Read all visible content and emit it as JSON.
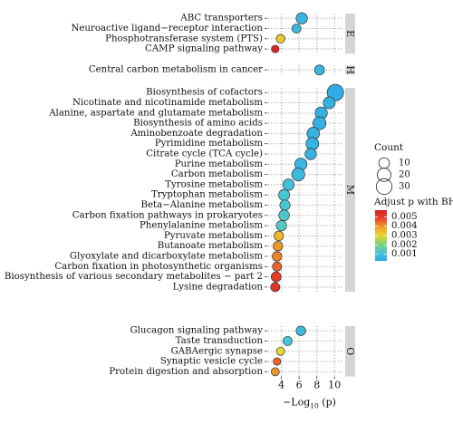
{
  "chart_data": {
    "type": "scatter",
    "subtype": "dot-plot (KEGG enrichment)",
    "title": "",
    "xlabel": {
      "main": "−Log",
      "sub": "10",
      "tail": " (p)"
    },
    "xlim": [
      2.5,
      11
    ],
    "x_ticks": [
      4,
      6,
      8,
      10
    ],
    "x_tick_labels": [
      "4",
      "6",
      "8",
      "10"
    ],
    "grid": "dotted",
    "legend_position": "right",
    "groups": [
      {
        "label": "E",
        "terms": [
          {
            "term": "ABC transporters",
            "x": 6.3,
            "count": 12,
            "padj": 0.0006
          },
          {
            "term": "Neuroactive ligand−receptor interaction",
            "x": 5.7,
            "count": 6,
            "padj": 0.0008
          },
          {
            "term": "Phosphotransferase system (PTS)",
            "x": 3.9,
            "count": 5,
            "padj": 0.0032
          },
          {
            "term": "CAMP signaling pathway",
            "x": 3.3,
            "count": 3,
            "padj": 0.0055
          }
        ]
      },
      {
        "label": "H",
        "terms": [
          {
            "term": "Central carbon metabolism in cancer",
            "x": 8.3,
            "count": 8,
            "padj": 0.0007
          }
        ]
      },
      {
        "label": "M",
        "terms": [
          {
            "term": "Biosynthesis of cofactors",
            "x": 10.1,
            "count": 34,
            "padj": 0.0004
          },
          {
            "term": "Nicotinate and nicotinamide metabolism",
            "x": 9.4,
            "count": 14,
            "padj": 0.0005
          },
          {
            "term": "Alanine, aspartate and glutamate metabolism",
            "x": 8.5,
            "count": 15,
            "padj": 0.0005
          },
          {
            "term": "Biosynthesis of amino acids",
            "x": 8.3,
            "count": 18,
            "padj": 0.0005
          },
          {
            "term": "Aminobenzoate degradation",
            "x": 7.6,
            "count": 16,
            "padj": 0.0006
          },
          {
            "term": "Pyrimidine metabolism",
            "x": 7.5,
            "count": 17,
            "padj": 0.0006
          },
          {
            "term": "Citrate cycle (TCA cycle)",
            "x": 7.3,
            "count": 12,
            "padj": 0.0006
          },
          {
            "term": "Purine metabolism",
            "x": 6.2,
            "count": 15,
            "padj": 0.0007
          },
          {
            "term": "Carbon metabolism",
            "x": 5.9,
            "count": 18,
            "padj": 0.0008
          },
          {
            "term": "Tyrosine metabolism",
            "x": 4.8,
            "count": 12,
            "padj": 0.001
          },
          {
            "term": "Tryptophan metabolism",
            "x": 4.3,
            "count": 11,
            "padj": 0.0012
          },
          {
            "term": "Beta−Alanine metabolism",
            "x": 4.4,
            "count": 9,
            "padj": 0.0012
          },
          {
            "term": "Carbon fixation pathways in prokaryotes",
            "x": 4.3,
            "count": 10,
            "padj": 0.0013
          },
          {
            "term": "Phenylalanine metabolism",
            "x": 4.0,
            "count": 9,
            "padj": 0.0014
          },
          {
            "term": "Pyruvate metabolism",
            "x": 3.7,
            "count": 7,
            "padj": 0.0035
          },
          {
            "term": "Butanoate metabolism",
            "x": 3.6,
            "count": 7,
            "padj": 0.004
          },
          {
            "term": "Glyoxylate and dicarboxylate metabolism",
            "x": 3.5,
            "count": 7,
            "padj": 0.0042
          },
          {
            "term": "Carbon fixation in photosynthetic organisms",
            "x": 3.5,
            "count": 6,
            "padj": 0.0045
          },
          {
            "term": "Biosynthesis of various secondary metabolites − part 2",
            "x": 3.4,
            "count": 8,
            "padj": 0.005
          },
          {
            "term": "Lysine degradation",
            "x": 3.3,
            "count": 6,
            "padj": 0.0052
          }
        ]
      },
      {
        "label": "O",
        "terms": [
          {
            "term": "Glucagon signaling pathway",
            "x": 6.2,
            "count": 7,
            "padj": 0.0008
          },
          {
            "term": "Taste transduction",
            "x": 4.7,
            "count": 6,
            "padj": 0.0011
          },
          {
            "term": "GABAergic synapse",
            "x": 3.9,
            "count": 4,
            "padj": 0.003
          },
          {
            "term": "Synaptic vesicle cycle",
            "x": 3.5,
            "count": 3,
            "padj": 0.0045
          },
          {
            "term": "Protein digestion and absorption",
            "x": 3.3,
            "count": 4,
            "padj": 0.004
          }
        ]
      }
    ],
    "legend_count": {
      "title": "Count",
      "values": [
        10,
        20,
        30
      ],
      "labels": [
        "10",
        "20",
        "30"
      ]
    },
    "legend_color": {
      "title": "Adjust p with BH",
      "ticks": [
        0.005,
        0.004,
        0.003,
        0.002,
        0.001
      ],
      "tick_labels": [
        "0.005",
        "0.004",
        "0.003",
        "0.002",
        "0.001"
      ],
      "range": [
        0.0003,
        0.0057
      ],
      "colors": [
        "#2ea8e6",
        "#48c6d6",
        "#7ed276",
        "#e6d62e",
        "#f0a02a",
        "#e8442a",
        "#d81e1e"
      ]
    },
    "colors": {
      "point_stroke": "#333333",
      "facet_strip": "#d4d4d4",
      "grid": "#9a9a9a"
    }
  }
}
